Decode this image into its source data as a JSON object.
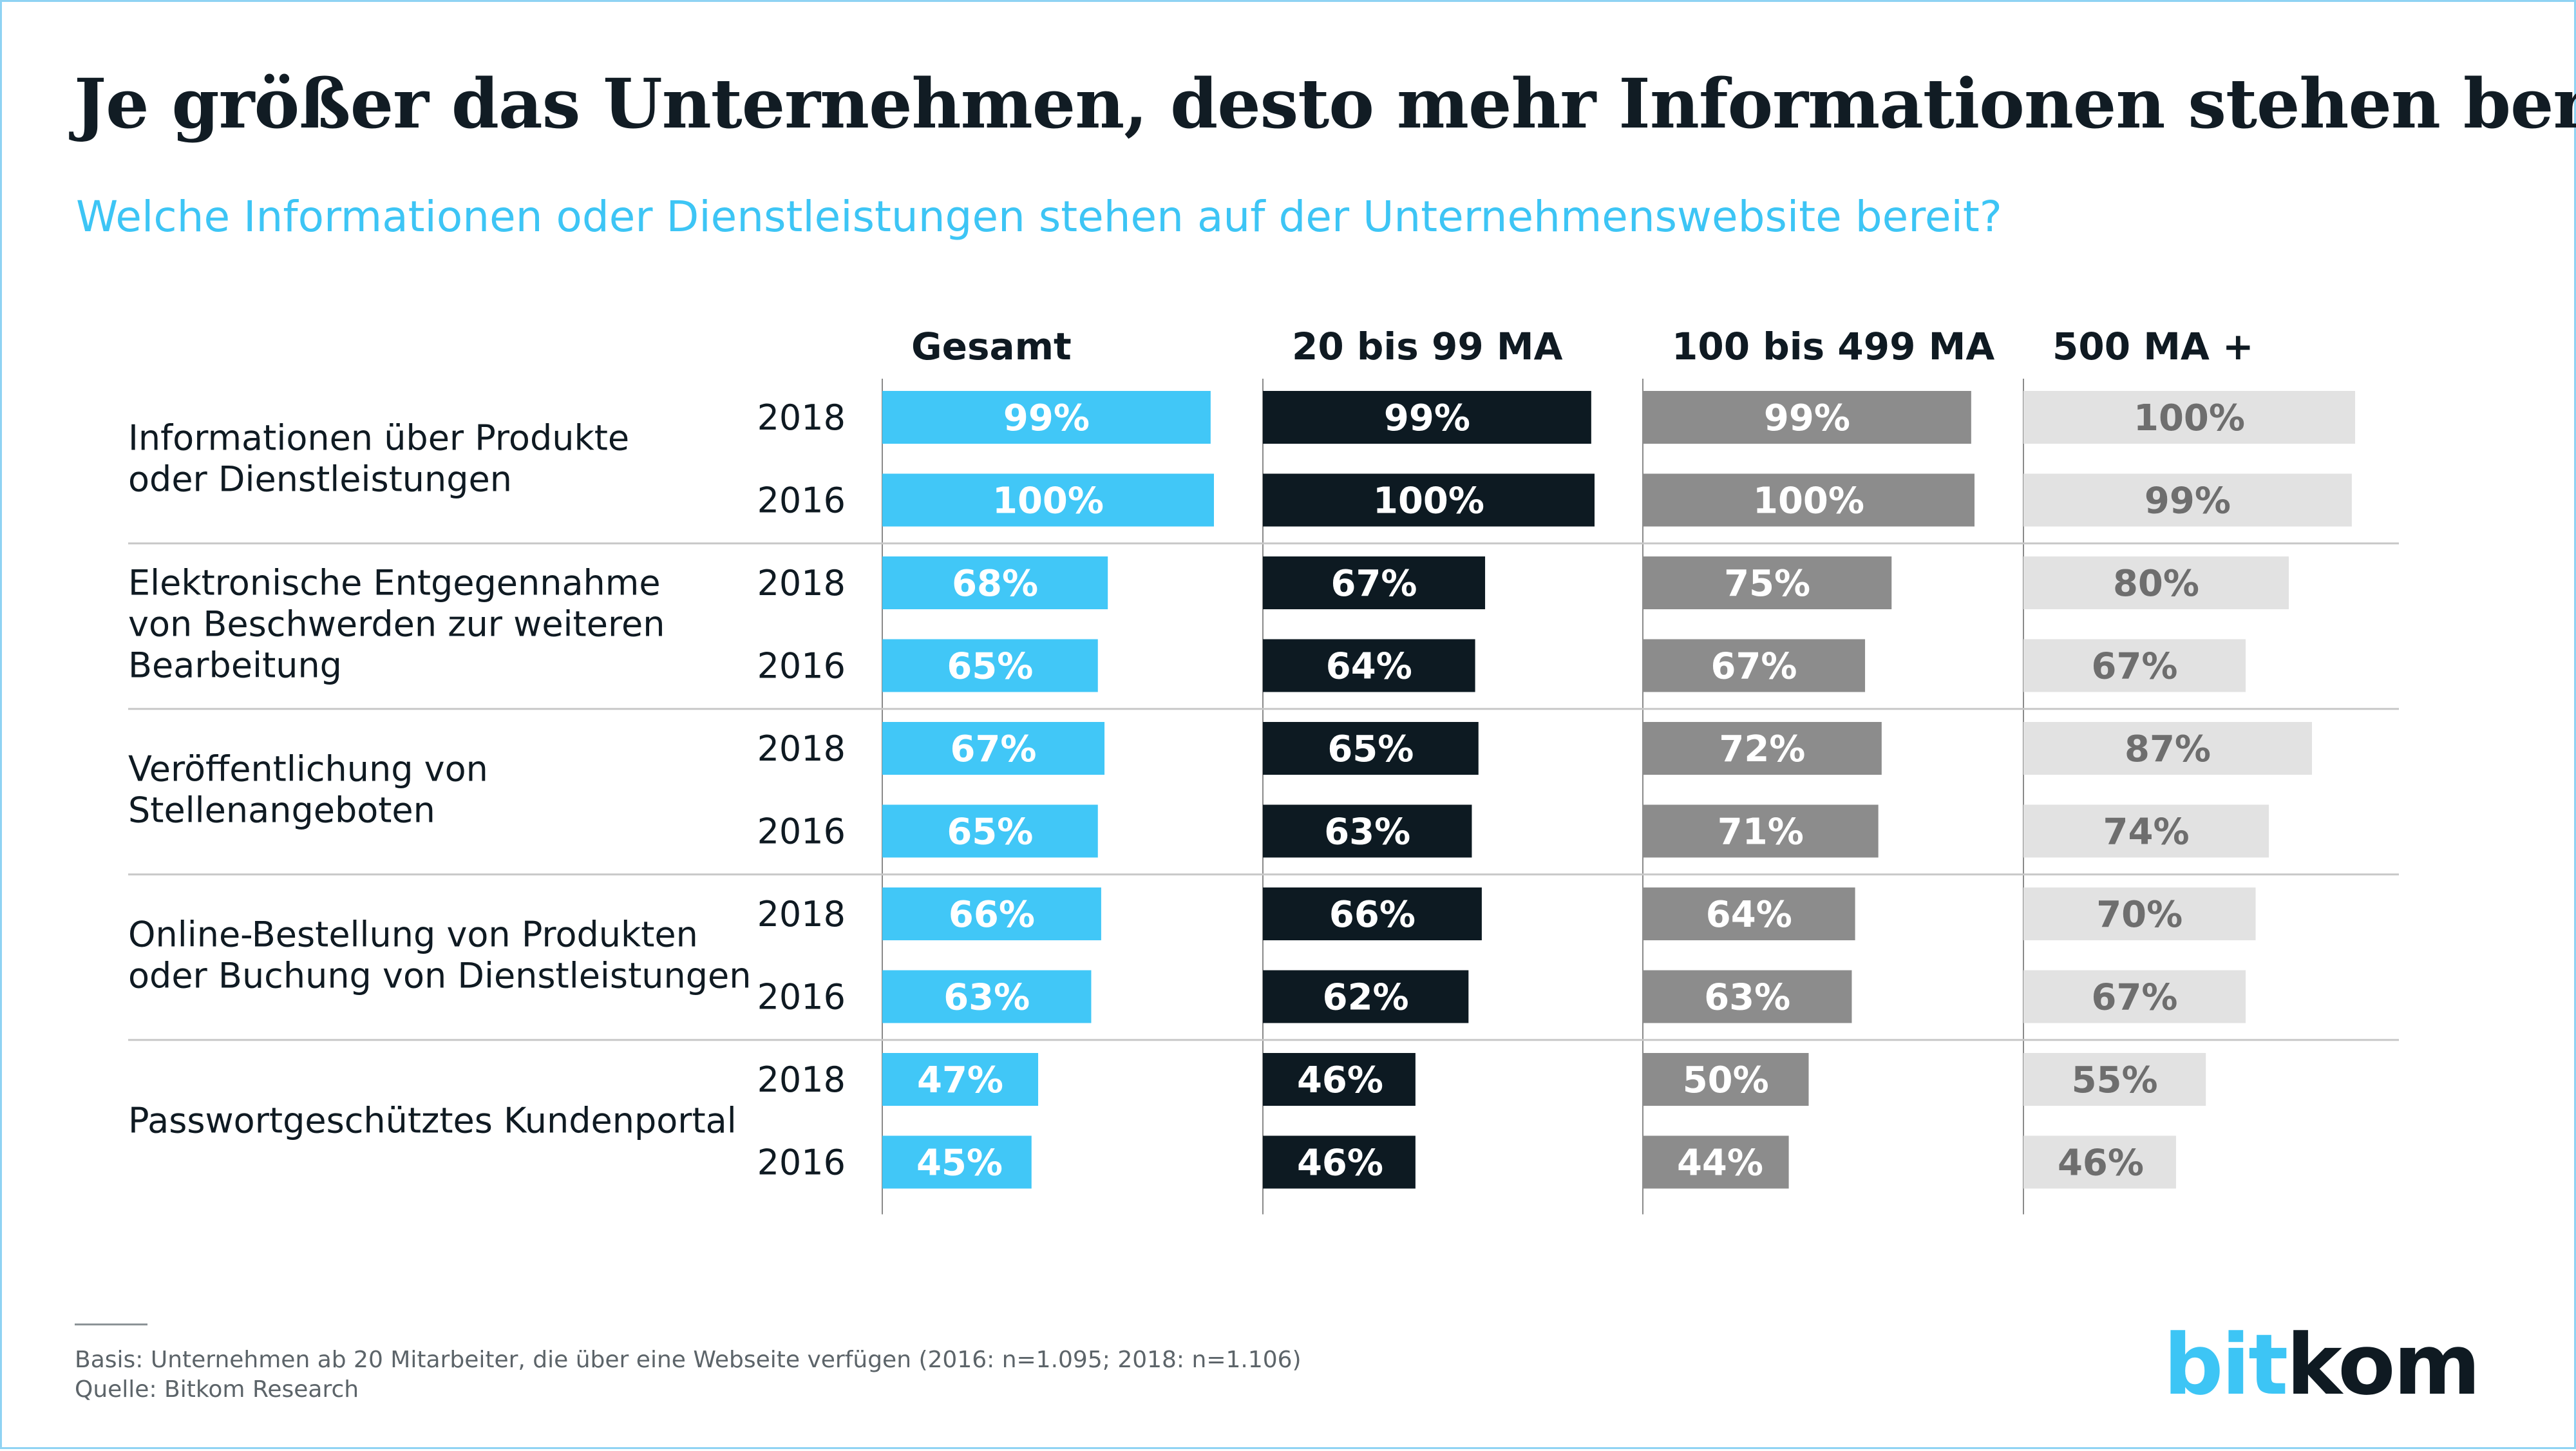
{
  "title": "Je größer das Unternehmen, desto mehr Informationen stehen bereit",
  "subtitle": "Welche Informationen oder Dienstleistungen stehen auf der Unternehmenswebsite bereit?",
  "footnote": {
    "basis": "Basis: Unternehmen ab 20 Mitarbeiter, die über eine Webseite verfügen (2016: n=1.095; 2018: n=1.106)",
    "source": "Quelle: Bitkom Research"
  },
  "logo": {
    "part1": "bit",
    "part2": "kom"
  },
  "colors": {
    "gesamt": "#41c7f7",
    "ma_20_99": "#0d1a22",
    "ma_100_499": "#8c8c8c",
    "ma_500": "#e2e2e2",
    "label_light": "#ffffff",
    "label_dark": "#6e6e6e",
    "separator": "#c8c8c8",
    "axis": "#8a8a8a"
  },
  "chart_data": {
    "type": "bar",
    "orientation": "horizontal",
    "value_unit": "%",
    "xlim": [
      0,
      100
    ],
    "columns": [
      "Gesamt",
      "20 bis 99 MA",
      "100 bis 499 MA",
      "500 MA +"
    ],
    "groups": [
      {
        "label": [
          "Informationen über Produkte",
          "oder Dienstleistungen"
        ],
        "rows": [
          {
            "year": "2018",
            "values": [
              99,
              99,
              99,
              100
            ]
          },
          {
            "year": "2016",
            "values": [
              100,
              100,
              100,
              99
            ]
          }
        ]
      },
      {
        "label": [
          "Elektronische Entgegennahme",
          "von Beschwerden zur weiteren",
          "Bearbeitung"
        ],
        "rows": [
          {
            "year": "2018",
            "values": [
              68,
              67,
              75,
              80
            ]
          },
          {
            "year": "2016",
            "values": [
              65,
              64,
              67,
              67
            ]
          }
        ]
      },
      {
        "label": [
          "Veröffentlichung von",
          "Stellenangeboten"
        ],
        "rows": [
          {
            "year": "2018",
            "values": [
              67,
              65,
              72,
              87
            ]
          },
          {
            "year": "2016",
            "values": [
              65,
              63,
              71,
              74
            ]
          }
        ]
      },
      {
        "label": [
          "Online-Bestellung von Produkten",
          "oder Buchung von Dienstleistungen"
        ],
        "rows": [
          {
            "year": "2018",
            "values": [
              66,
              66,
              64,
              70
            ]
          },
          {
            "year": "2016",
            "values": [
              63,
              62,
              63,
              67
            ]
          }
        ]
      },
      {
        "label": [
          "Passwortgeschütztes Kundenportal"
        ],
        "rows": [
          {
            "year": "2018",
            "values": [
              47,
              46,
              50,
              55
            ]
          },
          {
            "year": "2016",
            "values": [
              45,
              46,
              44,
              46
            ]
          }
        ]
      }
    ]
  }
}
